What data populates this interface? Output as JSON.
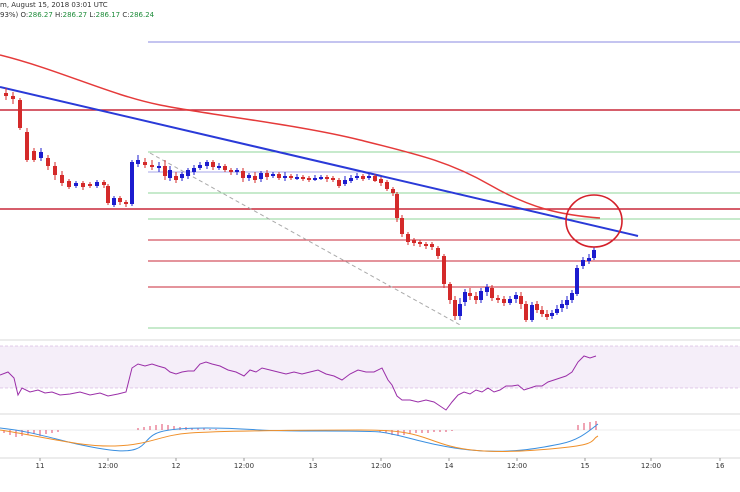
{
  "header": {
    "line1": "m, August 15, 2018 03:01 UTC",
    "line1_visible": "m, August 15, 2018 03:01 UTC",
    "line2_prefix": "93%)",
    "o_label": "O:",
    "o_value": "286.27",
    "h_label": "H:",
    "h_value": "286.27",
    "l_label": "L:",
    "l_value": "286.17",
    "c_label": "C:",
    "c_value": "286.24"
  },
  "chart_data": {
    "type": "candlestick",
    "x_tick_labels": [
      "11",
      "12:00",
      "12",
      "12:00",
      "13",
      "12:00",
      "14",
      "12:00",
      "15",
      "12:00",
      "16"
    ],
    "price_candles_close_trend": [
      296.8,
      296.0,
      291.4,
      290.5,
      289.6,
      289.2,
      288.9,
      288.4,
      287.6,
      290.9,
      291.3,
      290.5,
      290.1,
      290.4,
      290.7,
      290.3,
      289.9,
      289.9,
      289.7,
      290.2,
      289.6,
      286.6,
      285.9,
      285.2,
      282.7,
      281.8,
      281.9,
      282.6,
      282.6,
      282.1,
      281.6,
      281.7,
      282.5,
      284.5,
      285.6,
      286.24
    ],
    "moving_average": "red",
    "trend_line": "blue",
    "fibonacci_levels": "horizontal",
    "indicators": [
      "RSI",
      "MACD"
    ],
    "grid": false,
    "colors": {
      "up_candle": "#1c1ccf",
      "down_candle": "#d42a2a",
      "ma_line": "#e53a3a",
      "trend_line": "#2a3ad8",
      "level_red": "#c8283a",
      "level_green": "#8fd49a",
      "level_blue": "#8a8ae0",
      "rsi_band": "#ede0f4",
      "rsi_line": "#9a2ea8",
      "macd_blue": "#3a8fe0",
      "macd_orange": "#f0902a",
      "highlight_circle": "#d4202a"
    }
  }
}
